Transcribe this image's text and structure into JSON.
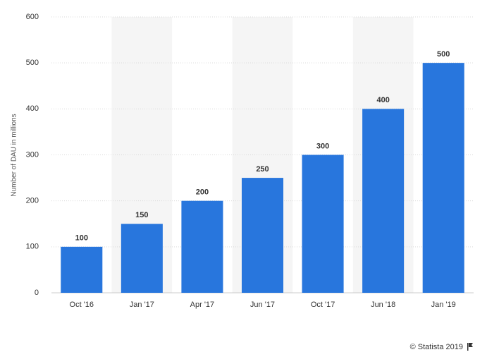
{
  "chart_data": {
    "type": "bar",
    "y_label": "Number of DAU in millions",
    "categories": [
      "Oct '16",
      "Jan '17",
      "Apr '17",
      "Jun '17",
      "Oct '17",
      "Jun '18",
      "Jan '19"
    ],
    "values": [
      100,
      150,
      200,
      250,
      300,
      400,
      500
    ],
    "color": "#2876dd",
    "ylim": [
      0,
      600
    ],
    "yticks": [
      0,
      100,
      200,
      300,
      400,
      500,
      600
    ],
    "grid": true,
    "data_labels": true,
    "source": "© Statista 2019"
  }
}
